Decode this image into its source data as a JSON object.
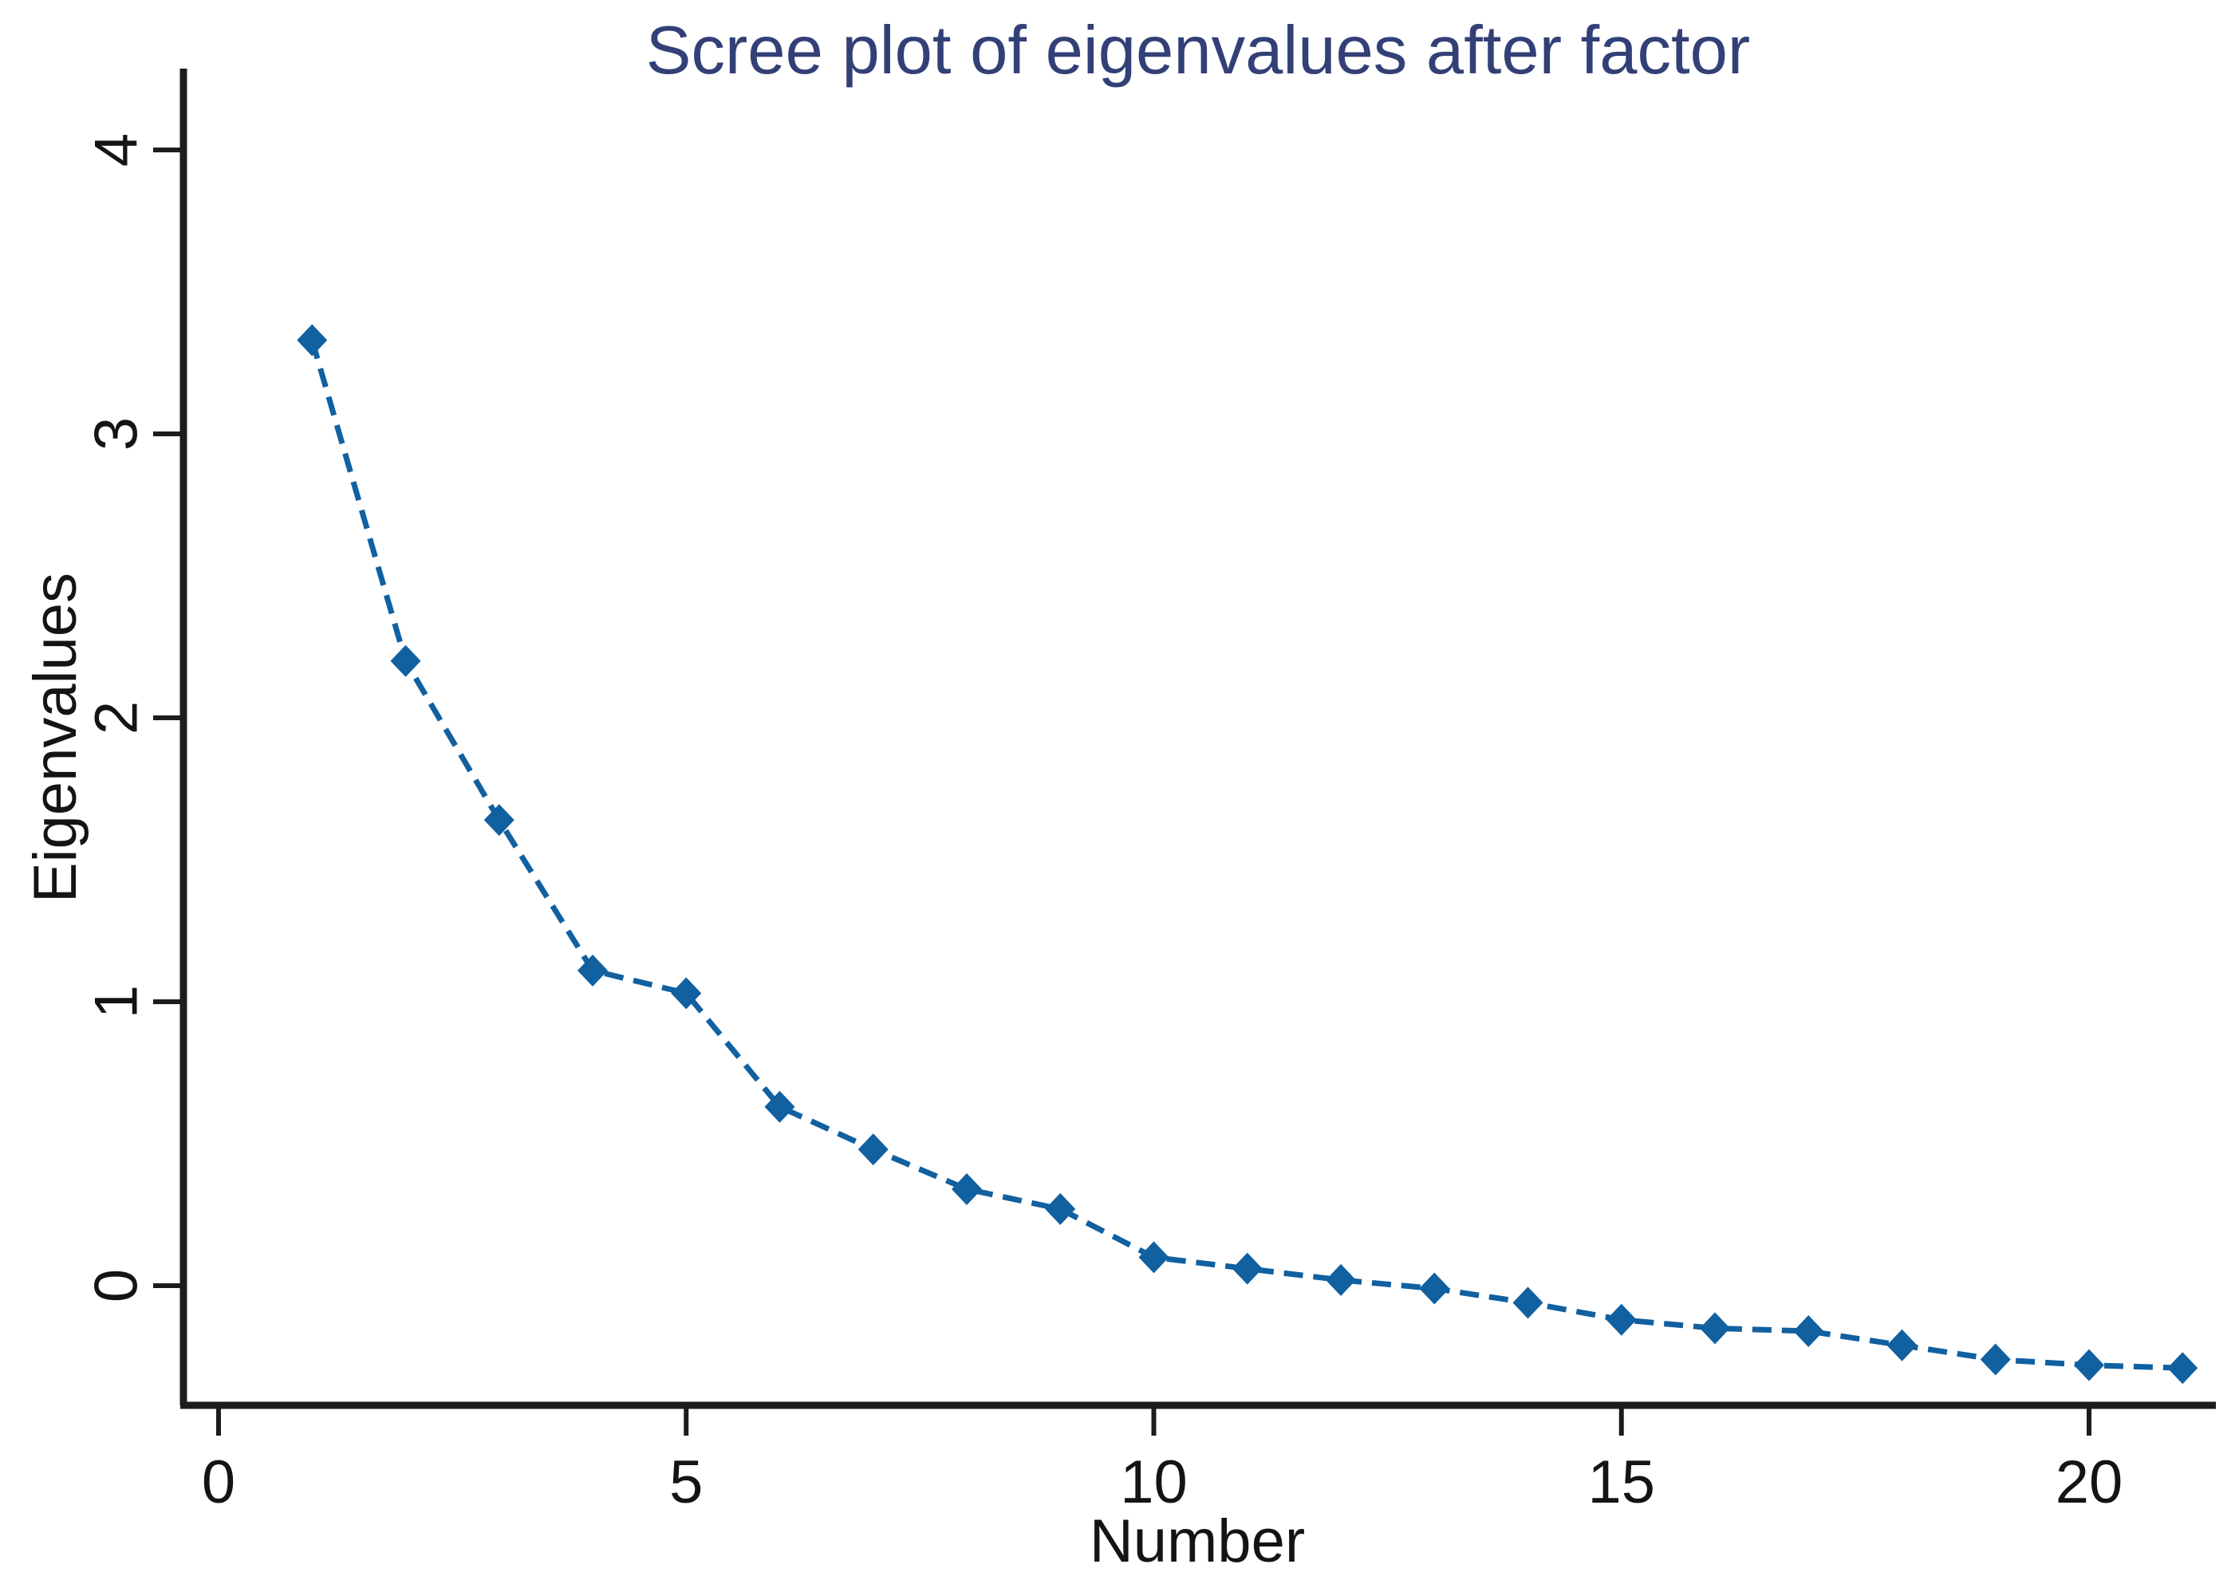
{
  "figure": {
    "background": "#ffffff"
  },
  "chart_data": {
    "type": "line",
    "title": "Scree plot of eigenvalues after factor",
    "xlabel": "Number",
    "ylabel": "Eigenvalues",
    "x": [
      1,
      2,
      3,
      4,
      5,
      6,
      7,
      8,
      9,
      10,
      11,
      12,
      13,
      14,
      15,
      16,
      17,
      18,
      19,
      20,
      21
    ],
    "values": [
      3.33,
      2.2,
      1.64,
      1.11,
      1.03,
      0.63,
      0.48,
      0.34,
      0.27,
      0.1,
      0.06,
      0.02,
      -0.01,
      -0.06,
      -0.12,
      -0.15,
      -0.16,
      -0.21,
      -0.26,
      -0.28,
      -0.29
    ],
    "x_ticks": [
      0,
      5,
      10,
      15,
      20
    ],
    "y_ticks": [
      0,
      1,
      2,
      3,
      4
    ],
    "xlim": [
      0,
      21.4
    ],
    "ylim": [
      -0.42,
      4.29
    ],
    "grid": false,
    "legend": null,
    "marker": "diamond",
    "line_style": "dashed",
    "y_tick_label_rotation_deg": 90,
    "colors": {
      "series": "#1160a0",
      "title": "#334077",
      "axis": "#1c1c1c",
      "tick_labels": "#141414"
    }
  }
}
